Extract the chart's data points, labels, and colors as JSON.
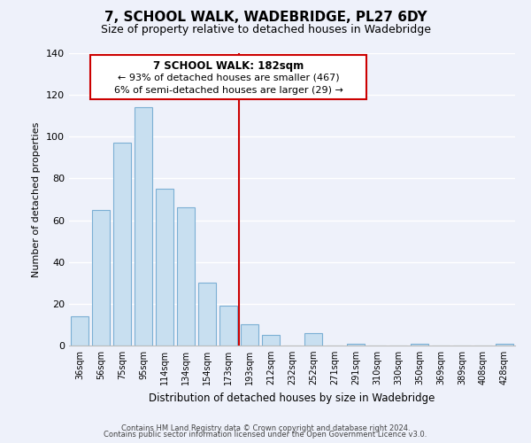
{
  "title": "7, SCHOOL WALK, WADEBRIDGE, PL27 6DY",
  "subtitle": "Size of property relative to detached houses in Wadebridge",
  "xlabel": "Distribution of detached houses by size in Wadebridge",
  "ylabel": "Number of detached properties",
  "bar_labels": [
    "36sqm",
    "56sqm",
    "75sqm",
    "95sqm",
    "114sqm",
    "134sqm",
    "154sqm",
    "173sqm",
    "193sqm",
    "212sqm",
    "232sqm",
    "252sqm",
    "271sqm",
    "291sqm",
    "310sqm",
    "330sqm",
    "350sqm",
    "369sqm",
    "389sqm",
    "408sqm",
    "428sqm"
  ],
  "bar_values": [
    14,
    65,
    97,
    114,
    75,
    66,
    30,
    19,
    10,
    5,
    0,
    6,
    0,
    1,
    0,
    0,
    1,
    0,
    0,
    0,
    1
  ],
  "bar_color": "#c8dff0",
  "bar_edge_color": "#7bafd4",
  "vline_x": 7.5,
  "vline_color": "#cc0000",
  "annotation_title": "7 SCHOOL WALK: 182sqm",
  "annotation_line1": "← 93% of detached houses are smaller (467)",
  "annotation_line2": "6% of semi-detached houses are larger (29) →",
  "annotation_box_color": "#ffffff",
  "annotation_box_edge": "#cc0000",
  "ylim": [
    0,
    140
  ],
  "yticks": [
    0,
    20,
    40,
    60,
    80,
    100,
    120,
    140
  ],
  "footer1": "Contains HM Land Registry data © Crown copyright and database right 2024.",
  "footer2": "Contains public sector information licensed under the Open Government Licence v3.0.",
  "bg_color": "#eef1fa"
}
